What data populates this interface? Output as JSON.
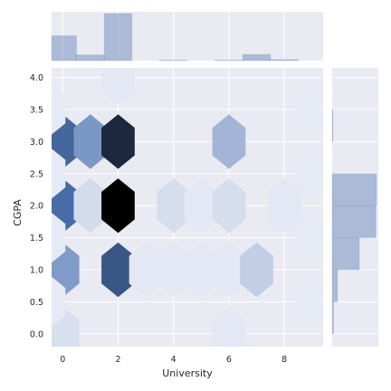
{
  "chart_data": {
    "type": "hexbin",
    "style": "seaborn darkgrid jointplot",
    "xlabel": "University",
    "ylabel": "CGPA",
    "xlim": [
      -0.4,
      9.4
    ],
    "ylim": [
      -0.2,
      4.15
    ],
    "xticks": [
      0,
      2,
      4,
      6,
      8
    ],
    "yticks": [
      0.0,
      0.5,
      1.0,
      1.5,
      2.0,
      2.5,
      3.0,
      3.5,
      4.0
    ],
    "xtick_labels": [
      "0",
      "2",
      "4",
      "6",
      "8"
    ],
    "ytick_labels": [
      "0.0",
      "0.5",
      "1.0",
      "1.5",
      "2.0",
      "2.5",
      "3.0",
      "3.5",
      "4.0"
    ],
    "colors": {
      "background": "#eaeaf2",
      "grid": "#ffffff",
      "hex_low": "#e8ecf6",
      "hex_mid": "#4c72b0",
      "hex_high": "#000000",
      "hist_fill": "#4c72b0"
    },
    "hexbins": [
      {
        "x": 0,
        "y": 0.0,
        "density": 0.06
      },
      {
        "x": 0,
        "y": 1.0,
        "density": 0.4
      },
      {
        "x": 0,
        "y": 2.0,
        "density": 0.62
      },
      {
        "x": 0,
        "y": 3.0,
        "density": 0.64
      },
      {
        "x": 1,
        "y": 2.0,
        "density": 0.08
      },
      {
        "x": 1,
        "y": 3.0,
        "density": 0.42
      },
      {
        "x": 2,
        "y": 1.0,
        "density": 0.7
      },
      {
        "x": 2,
        "y": 2.0,
        "density": 1.0
      },
      {
        "x": 2,
        "y": 3.0,
        "density": 0.86
      },
      {
        "x": 2,
        "y": 4.0,
        "density": 0.02
      },
      {
        "x": 3,
        "y": 1.0,
        "density": 0.02
      },
      {
        "x": 4,
        "y": 1.0,
        "density": 0.02
      },
      {
        "x": 4,
        "y": 2.0,
        "density": 0.07
      },
      {
        "x": 5,
        "y": 1.0,
        "density": 0.02
      },
      {
        "x": 5,
        "y": 2.0,
        "density": 0.02
      },
      {
        "x": 6,
        "y": 1.0,
        "density": 0.02
      },
      {
        "x": 6,
        "y": 2.0,
        "density": 0.07
      },
      {
        "x": 6,
        "y": 3.0,
        "density": 0.27
      },
      {
        "x": 6,
        "y": 0.0,
        "density": 0.02
      },
      {
        "x": 7,
        "y": 1.0,
        "density": 0.15
      },
      {
        "x": 8,
        "y": 2.0,
        "density": 0.02
      },
      {
        "x": 9,
        "y": 0.5,
        "density": 0.01
      },
      {
        "x": 9,
        "y": 1.5,
        "density": 0.01
      },
      {
        "x": 9,
        "y": 2.5,
        "density": 0.01
      },
      {
        "x": 9,
        "y": 3.5,
        "density": 0.01
      },
      {
        "x": -0.5,
        "y": 0.5,
        "density": 0.01
      },
      {
        "x": -0.5,
        "y": 1.5,
        "density": 0.01
      },
      {
        "x": -0.5,
        "y": 2.5,
        "density": 0.01
      },
      {
        "x": -0.5,
        "y": 3.5,
        "density": 0.01
      }
    ],
    "x_marginal_hist": {
      "bin_edges": [
        -0.5,
        0.5,
        1.5,
        2.5,
        3.5,
        4.5,
        5.5,
        6.5,
        7.5,
        8.5,
        9.5
      ],
      "counts": [
        48,
        11,
        91,
        0,
        1,
        0,
        1,
        12,
        2,
        0
      ]
    },
    "y_marginal_hist": {
      "bin_edges": [
        0.0,
        0.5,
        1.0,
        1.5,
        2.0,
        2.5,
        3.0,
        3.5,
        4.0
      ],
      "counts": [
        2,
        8,
        41,
        66,
        67,
        0,
        1,
        0
      ]
    }
  }
}
